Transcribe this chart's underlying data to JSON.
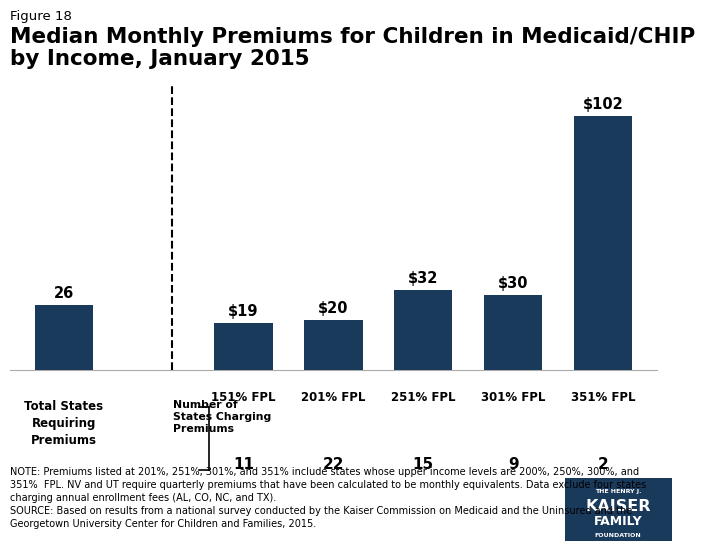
{
  "figure_label": "Figure 18",
  "title": "Median Monthly Premiums for Children in Medicaid/CHIP\nby Income, January 2015",
  "bar_color": "#1a3a5c",
  "categories": [
    "Total States\nRequiring\nPremiums",
    "151% FPL",
    "201% FPL",
    "251% FPL",
    "301% FPL",
    "351% FPL"
  ],
  "values": [
    26,
    19,
    20,
    32,
    30,
    102
  ],
  "value_labels": [
    "26",
    "$19",
    "$20",
    "$32",
    "$30",
    "$102"
  ],
  "state_counts": [
    "",
    "11",
    "22",
    "15",
    "9",
    "2"
  ],
  "ylim": [
    0,
    115
  ],
  "note_text": "NOTE: Premiums listed at 201%, 251%, 301%, and 351% include states whose upper income levels are 200%, 250%, 300%, and\n351%  FPL. NV and UT require quarterly premiums that have been calculated to be monthly equivalents. Data exclude four states\ncharging annual enrollment fees (AL, CO, NC, and TX).\nSOURCE: Based on results from a national survey conducted by the Kaiser Commission on Medicaid and the Uninsured and the\nGeorgetown University Center for Children and Families, 2015.",
  "number_of_states_label": "Number of\nStates Charging\nPremiums",
  "background_color": "#ffffff",
  "kaiser_logo_color": "#1a3a5c",
  "fpl_labels": [
    "151% FPL",
    "201% FPL",
    "251% FPL",
    "301% FPL",
    "351% FPL"
  ],
  "x_positions": [
    0,
    2,
    3,
    4,
    5,
    6
  ],
  "bar_width": 0.65,
  "xlim": [
    -0.6,
    6.6
  ]
}
